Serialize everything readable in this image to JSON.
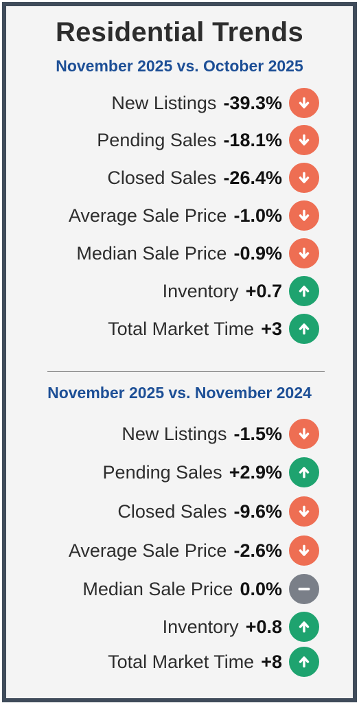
{
  "title": "Residential Trends",
  "colors": {
    "down": "#ee6e53",
    "up": "#1ea36f",
    "flat": "#7a7f88",
    "subtitle": "#1d4f96",
    "border": "#3f4b5a"
  },
  "sections": [
    {
      "subtitle": "November 2025 vs. October 2025",
      "rows": [
        {
          "label": "New Listings",
          "value": "-39.3%",
          "trend": "down",
          "icon": "arrow-down-icon"
        },
        {
          "label": "Pending Sales",
          "value": "-18.1%",
          "trend": "down",
          "icon": "arrow-down-icon"
        },
        {
          "label": "Closed Sales",
          "value": "-26.4%",
          "trend": "down",
          "icon": "arrow-down-icon"
        },
        {
          "label": "Average Sale Price",
          "value": "-1.0%",
          "trend": "down",
          "icon": "arrow-down-icon"
        },
        {
          "label": "Median Sale Price",
          "value": "-0.9%",
          "trend": "down",
          "icon": "arrow-down-icon"
        },
        {
          "label": "Inventory",
          "value": "+0.7",
          "trend": "up",
          "icon": "arrow-up-icon"
        },
        {
          "label": "Total Market Time",
          "value": "+3",
          "trend": "up",
          "icon": "arrow-up-icon"
        }
      ]
    },
    {
      "subtitle": "November 2025 vs. November 2024",
      "rows": [
        {
          "label": "New Listings",
          "value": "-1.5%",
          "trend": "down",
          "icon": "arrow-down-icon"
        },
        {
          "label": "Pending Sales",
          "value": "+2.9%",
          "trend": "up",
          "icon": "arrow-up-icon"
        },
        {
          "label": "Closed Sales",
          "value": "-9.6%",
          "trend": "down",
          "icon": "arrow-down-icon"
        },
        {
          "label": "Average Sale Price",
          "value": "-2.6%",
          "trend": "down",
          "icon": "arrow-down-icon"
        },
        {
          "label": "Median Sale Price",
          "value": "0.0%",
          "trend": "flat",
          "icon": "minus-icon"
        },
        {
          "label": "Inventory",
          "value": "+0.8",
          "trend": "up",
          "icon": "arrow-up-icon"
        },
        {
          "label": "Total Market Time",
          "value": "+8",
          "trend": "up",
          "icon": "arrow-up-icon"
        }
      ]
    }
  ]
}
